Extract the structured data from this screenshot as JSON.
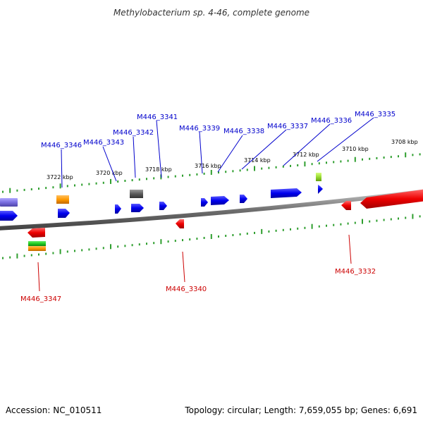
{
  "title": "Methylobacterium sp. 4-46, complete genome",
  "footer": {
    "accession": "Accession: NC_010511",
    "summary": "Topology: circular; Length: 7,659,055 bp; Genes: 6,691"
  },
  "colors": {
    "backbone": "#7a7a7a",
    "tick": "#2e9e2e",
    "forward_label": "#0000cc",
    "reverse_label": "#cc0000",
    "forward_gene": "#0000ee",
    "reverse_gene": "#ee0000"
  },
  "kbp_labels": [
    "3722 kbp",
    "3720 kbp",
    "3718 kbp",
    "3716 kbp",
    "3714 kbp",
    "3712 kbp",
    "3710 kbp",
    "3708 kbp"
  ],
  "forward_gene_labels": [
    "M446_3346",
    "M446_3343",
    "M446_3342",
    "M446_3341",
    "M446_3339",
    "M446_3338",
    "M446_3337",
    "M446_3336",
    "M446_3335"
  ],
  "reverse_gene_labels": [
    "M446_3347",
    "M446_3340",
    "M446_3332"
  ]
}
